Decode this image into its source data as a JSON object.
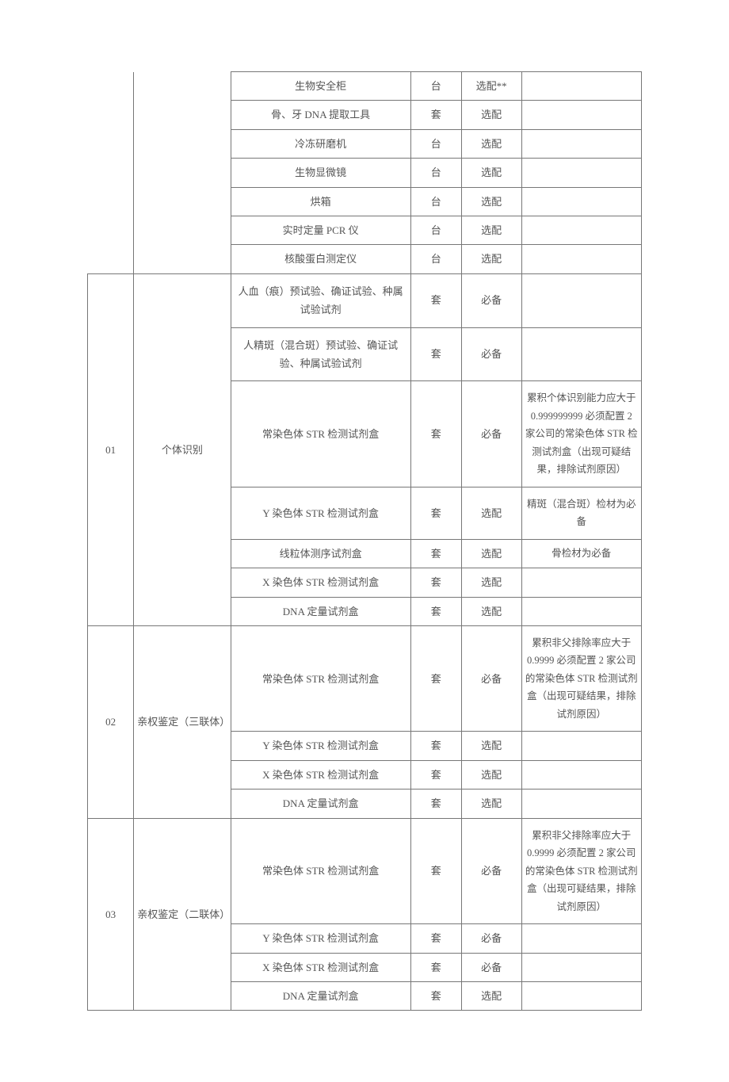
{
  "rows": [
    {
      "item": "生物安全柜",
      "unit": "台",
      "req": "选配**",
      "note": "",
      "id": "",
      "cat": "",
      "idspan": 7,
      "catspan": 7,
      "hideId": true,
      "hideCat": true
    },
    {
      "item": "骨、牙 DNA 提取工具",
      "unit": "套",
      "req": "选配",
      "note": ""
    },
    {
      "item": "冷冻研磨机",
      "unit": "台",
      "req": "选配",
      "note": ""
    },
    {
      "item": "生物显微镜",
      "unit": "台",
      "req": "选配",
      "note": ""
    },
    {
      "item": "烘箱",
      "unit": "台",
      "req": "选配",
      "note": ""
    },
    {
      "item": "实时定量 PCR 仪",
      "unit": "台",
      "req": "选配",
      "note": ""
    },
    {
      "item": "核酸蛋白测定仪",
      "unit": "台",
      "req": "选配",
      "note": ""
    },
    {
      "item": "人血（痕）预试验、确证试验、种属试验试剂",
      "unit": "套",
      "req": "必备",
      "note": "",
      "id": "01",
      "cat": "个体识别",
      "idspan": 7,
      "catspan": 7,
      "tall": true
    },
    {
      "item": "人精斑（混合斑）预试验、确证试验、种属试验试剂",
      "unit": "套",
      "req": "必备",
      "note": "",
      "tall": true
    },
    {
      "item": "常染色体 STR 检测试剂盒",
      "unit": "套",
      "req": "必备",
      "note": "累积个体识别能力应大于 0.999999999 必须配置 2 家公司的常染色体 STR 检测试剂盒（出现可疑结果，排除试剂原因）",
      "tall": true
    },
    {
      "item": "Y 染色体 STR 检测试剂盒",
      "unit": "套",
      "req": "选配",
      "note": "精斑（混合斑）检材为必备",
      "tall": true
    },
    {
      "item": "线粒体测序试剂盒",
      "unit": "套",
      "req": "选配",
      "note": "骨检材为必备"
    },
    {
      "item": "X 染色体 STR 检测试剂盒",
      "unit": "套",
      "req": "选配",
      "note": ""
    },
    {
      "item": "DNA 定量试剂盒",
      "unit": "套",
      "req": "选配",
      "note": ""
    },
    {
      "item": "常染色体 STR 检测试剂盒",
      "unit": "套",
      "req": "必备",
      "note": "累积非父排除率应大于 0.9999 必须配置 2 家公司的常染色体 STR 检测试剂盒（出现可疑结果，排除试剂原因）",
      "id": "02",
      "cat": "亲权鉴定（三联体）",
      "idspan": 4,
      "catspan": 4,
      "tall": true
    },
    {
      "item": "Y 染色体 STR 检测试剂盒",
      "unit": "套",
      "req": "选配",
      "note": ""
    },
    {
      "item": "X 染色体 STR 检测试剂盒",
      "unit": "套",
      "req": "选配",
      "note": ""
    },
    {
      "item": "DNA 定量试剂盒",
      "unit": "套",
      "req": "选配",
      "note": ""
    },
    {
      "item": "常染色体 STR 检测试剂盒",
      "unit": "套",
      "req": "必备",
      "note": "累积非父排除率应大于 0.9999 必须配置 2 家公司的常染色体 STR 检测试剂盒（出现可疑结果，排除试剂原因）",
      "id": "03",
      "cat": "亲权鉴定（二联体）",
      "idspan": 4,
      "catspan": 4,
      "tall": true
    },
    {
      "item": "Y 染色体 STR 检测试剂盒",
      "unit": "套",
      "req": "必备",
      "note": ""
    },
    {
      "item": "X 染色体 STR 检测试剂盒",
      "unit": "套",
      "req": "必备",
      "note": ""
    },
    {
      "item": "DNA 定量试剂盒",
      "unit": "套",
      "req": "选配",
      "note": ""
    }
  ]
}
